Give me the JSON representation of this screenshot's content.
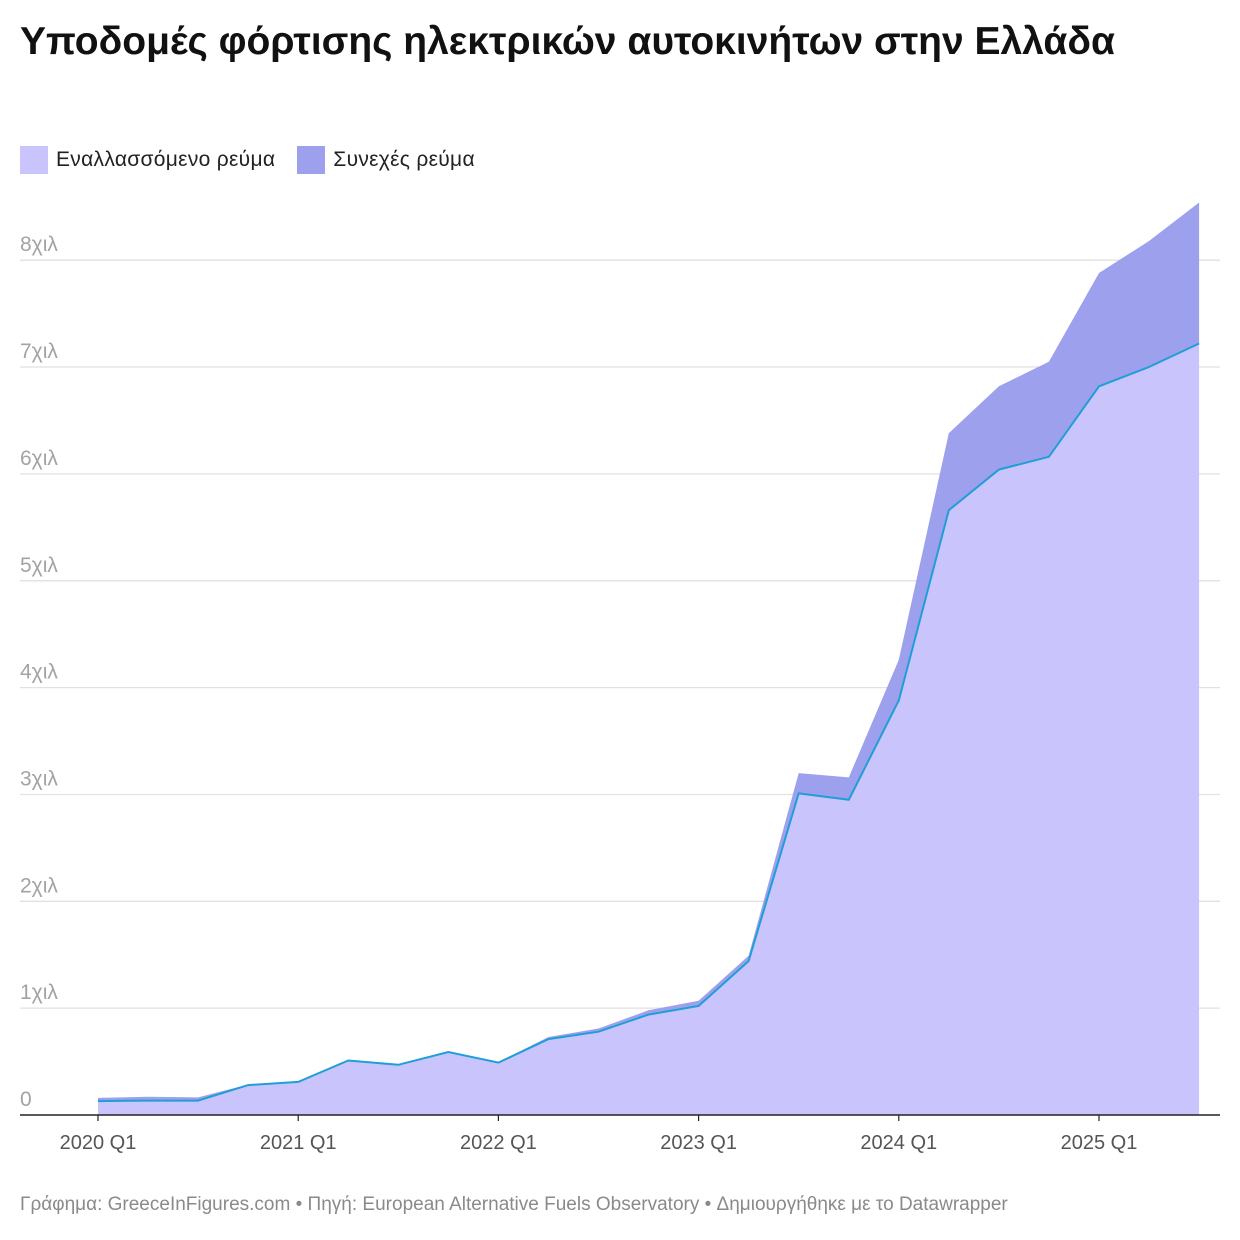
{
  "chart_data": {
    "type": "area",
    "stacked": true,
    "title": "Υποδομές φόρτισης ηλεκτρικών αυτοκινήτων στην Ελλάδα",
    "categories": [
      "2020 Q1",
      "2020 Q2",
      "2020 Q3",
      "2020 Q4",
      "2021 Q1",
      "2021 Q2",
      "2021 Q3",
      "2021 Q4",
      "2022 Q1",
      "2022 Q2",
      "2022 Q3",
      "2022 Q4",
      "2023 Q1",
      "2023 Q2",
      "2023 Q3",
      "2023 Q4",
      "2024 Q1",
      "2024 Q2",
      "2024 Q3",
      "2024 Q4",
      "2025 Q1",
      "2025 Q2",
      "2025 Q3"
    ],
    "x_tick_labels": [
      "2020 Q1",
      "2021 Q1",
      "2022 Q1",
      "2023 Q1",
      "2024 Q1",
      "2025 Q1"
    ],
    "y_tick_labels": [
      "0",
      "1χιλ",
      "2χιλ",
      "3χιλ",
      "4χιλ",
      "5χιλ",
      "6χιλ",
      "7χιλ",
      "8χιλ"
    ],
    "ylim": [
      0,
      8500
    ],
    "grid": true,
    "legend_position": "top-left",
    "series": [
      {
        "name": "Εναλλασσόμενο ρεύμα",
        "color": "#c9c5fc",
        "values": [
          130,
          135,
          135,
          280,
          310,
          510,
          470,
          590,
          490,
          710,
          780,
          940,
          1020,
          1440,
          3010,
          2950,
          3880,
          5660,
          6040,
          6160,
          6820,
          7000,
          7220
        ]
      },
      {
        "name": "Συνεχές ρεύμα",
        "color": "#9da0ec",
        "values": [
          30,
          35,
          30,
          5,
          5,
          5,
          5,
          5,
          5,
          20,
          30,
          40,
          50,
          50,
          190,
          210,
          380,
          720,
          780,
          890,
          1060,
          1180,
          1320
        ]
      }
    ],
    "line_color": "#1f9ed8"
  },
  "footer": "Γράφημα: GreeceInFigures.com • Πηγή: European Alternative Fuels Observatory • Δημιουργήθηκε με το Datawrapper"
}
